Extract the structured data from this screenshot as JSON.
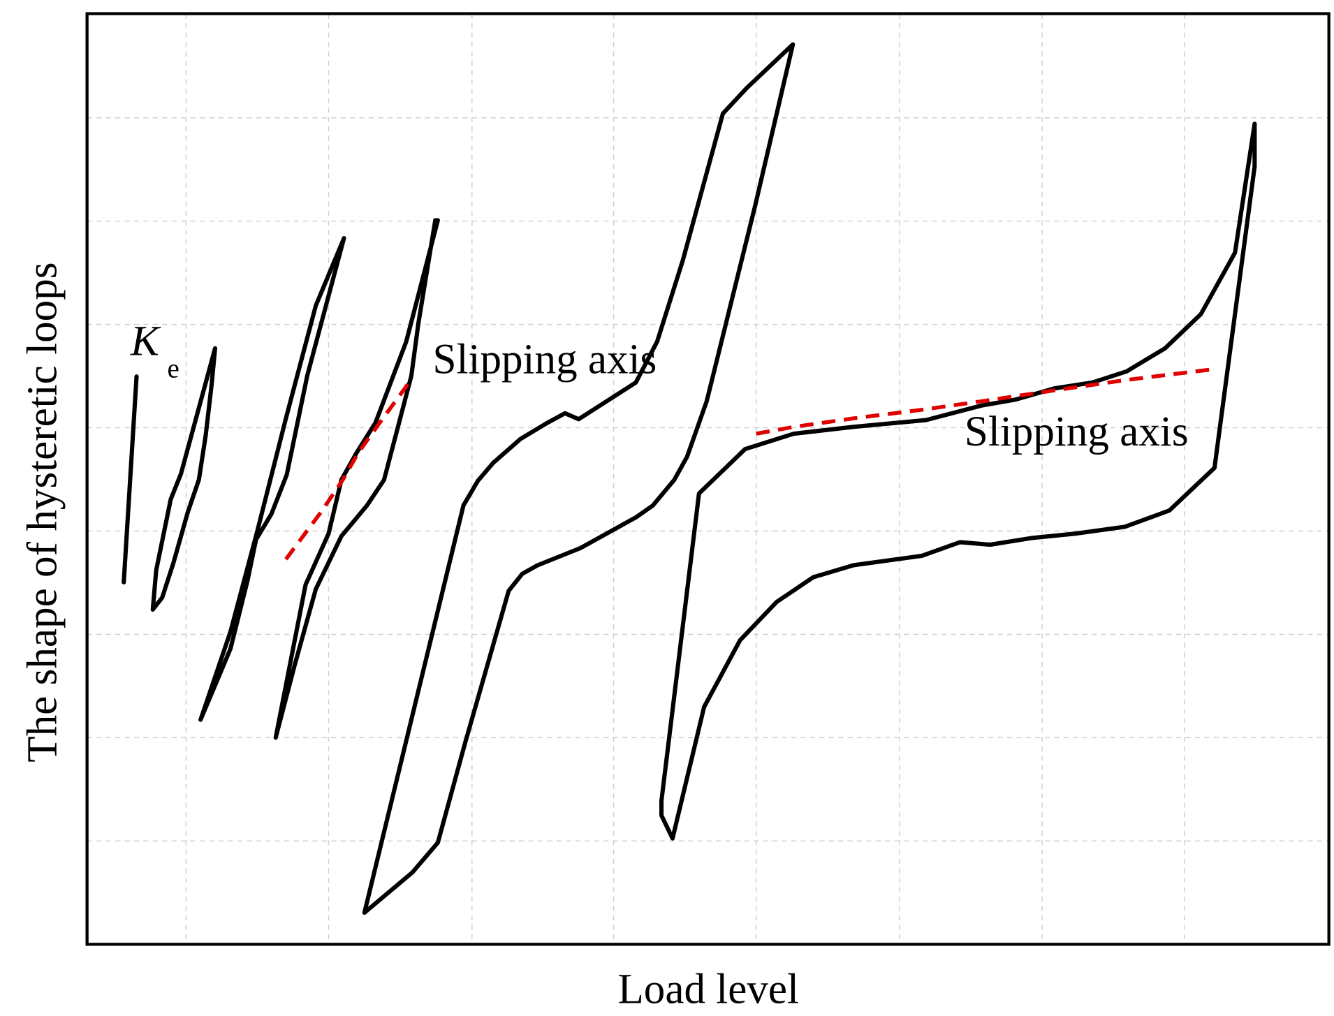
{
  "xlabel": "Load level",
  "ylabel": "The shape of hysteretic loops",
  "annotations": {
    "stiffness_symbol": "K",
    "stiffness_subscript": "e",
    "slip_1": "Slipping axis",
    "slip_2": "Slipping axis"
  }
}
